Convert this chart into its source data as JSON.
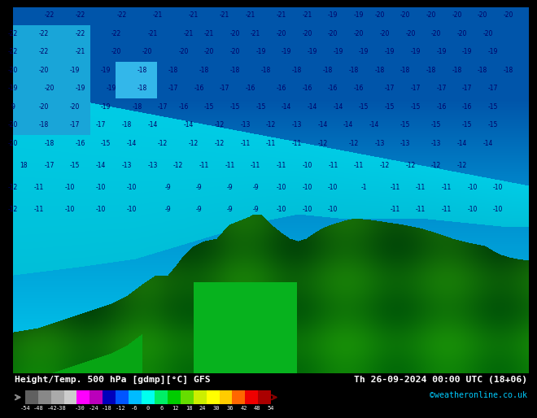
{
  "title_left": "Height/Temp. 500 hPa [gdmp][°C] GFS",
  "title_right": "Th 26-09-2024 00:00 UTC (18+06)",
  "credit": "©weatheronline.co.uk",
  "colorbar_ticks": [
    -54,
    -48,
    -42,
    -38,
    -30,
    -24,
    -18,
    -12,
    -6,
    0,
    6,
    12,
    18,
    24,
    30,
    36,
    42,
    48,
    54
  ],
  "colorbar_tick_labels": [
    "-54",
    "-48",
    "-42",
    "-38",
    "-30",
    "-24",
    "-18",
    "-12",
    "-6",
    "0",
    "6",
    "12",
    "18",
    "24",
    "30",
    "36",
    "42",
    "48",
    "54"
  ],
  "colorbar_colors": [
    "#606060",
    "#888888",
    "#aaaaaa",
    "#cccccc",
    "#ff00ff",
    "#bb00bb",
    "#0000bb",
    "#0055ff",
    "#00bbff",
    "#00ffee",
    "#00ee66",
    "#00cc00",
    "#66dd00",
    "#ccee00",
    "#ffff00",
    "#ffcc00",
    "#ff6600",
    "#ee0000",
    "#aa0000"
  ],
  "colorbar_vmin": -54,
  "colorbar_vmax": 54,
  "fig_bg": "#000000",
  "credit_color": "#00ccff",
  "map_colors": {
    "deep_blue": "#0055aa",
    "mid_blue": "#0088cc",
    "cyan_light": "#00ccee",
    "cyan_mid": "#00bbdd",
    "green_dark": "#1a6622",
    "green_mid": "#2a8833",
    "green_light": "#33aa44",
    "green_bright": "#22cc44"
  },
  "contour_label_color_dark": "#000066",
  "contour_label_color_land": "#333300",
  "height_contour_color": "#000000",
  "coast_color": "#cccccc",
  "temp_contour_color": "#cc6600"
}
